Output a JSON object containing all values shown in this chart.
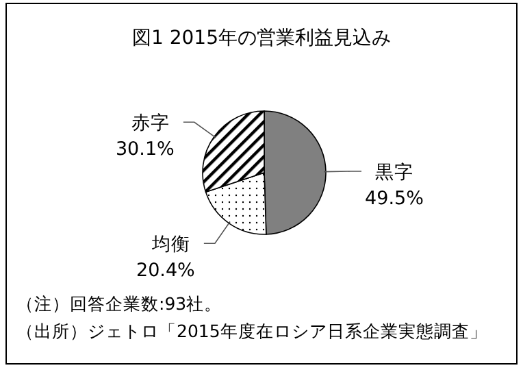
{
  "chart_data": {
    "type": "pie",
    "title": "図1  2015年の営業利益見込み",
    "categories": [
      "黒字",
      "均衡",
      "赤字"
    ],
    "values": [
      49.5,
      20.4,
      30.1
    ],
    "colors": [
      "#808080",
      "#ffffff",
      "#ffffff"
    ],
    "value_labels": [
      "49.5%",
      "20.4%",
      "30.1%"
    ],
    "annotations": [
      "（注）回答企業数:93社。",
      "（出所）ジェトロ「2015年度在ロシア日系企業実態調査」"
    ]
  }
}
